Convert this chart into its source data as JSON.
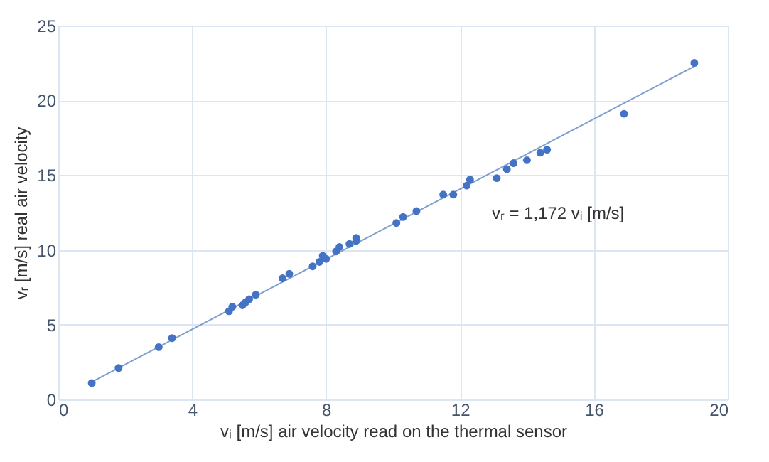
{
  "chart_data": {
    "type": "scatter",
    "xlabel": "vᵢ [m/s] air velocity read on the thermal sensor",
    "ylabel": "vᵣ [m/s] real air velocity",
    "xlim": [
      0,
      20
    ],
    "xticks": [
      0,
      4,
      8,
      12,
      16,
      20
    ],
    "ylim": [
      0,
      25
    ],
    "yticks": [
      0,
      5,
      10,
      15,
      20,
      25
    ],
    "grid": true,
    "marker": "circle",
    "annotations": [
      "vᵣ = 1,172 vᵢ [m/s]"
    ],
    "series": [
      {
        "type": "scatter",
        "color": "#4472c4",
        "x": [
          1.0,
          1.8,
          3.0,
          3.4,
          5.1,
          5.2,
          5.5,
          5.6,
          5.7,
          5.9,
          6.7,
          6.9,
          7.6,
          7.8,
          7.9,
          8.0,
          8.3,
          8.4,
          8.7,
          8.9,
          8.9,
          10.1,
          10.3,
          10.7,
          11.5,
          11.8,
          12.2,
          12.3,
          13.1,
          13.4,
          13.6,
          14.0,
          14.4,
          14.6,
          16.9,
          19.0
        ],
        "values": [
          1.1,
          2.1,
          3.5,
          4.1,
          5.9,
          6.2,
          6.3,
          6.5,
          6.7,
          7.0,
          8.1,
          8.4,
          8.9,
          9.2,
          9.6,
          9.4,
          9.9,
          10.2,
          10.4,
          10.8,
          10.6,
          11.8,
          12.2,
          12.6,
          13.7,
          13.7,
          14.3,
          14.7,
          14.8,
          15.4,
          15.8,
          16.0,
          16.5,
          16.7,
          19.1,
          22.5
        ]
      },
      {
        "type": "line",
        "color": "#7f9fd0",
        "marker": "none",
        "x": [
          1.0,
          19.0
        ],
        "line_style": "solid",
        "values": [
          1.17,
          22.27
        ]
      }
    ]
  }
}
